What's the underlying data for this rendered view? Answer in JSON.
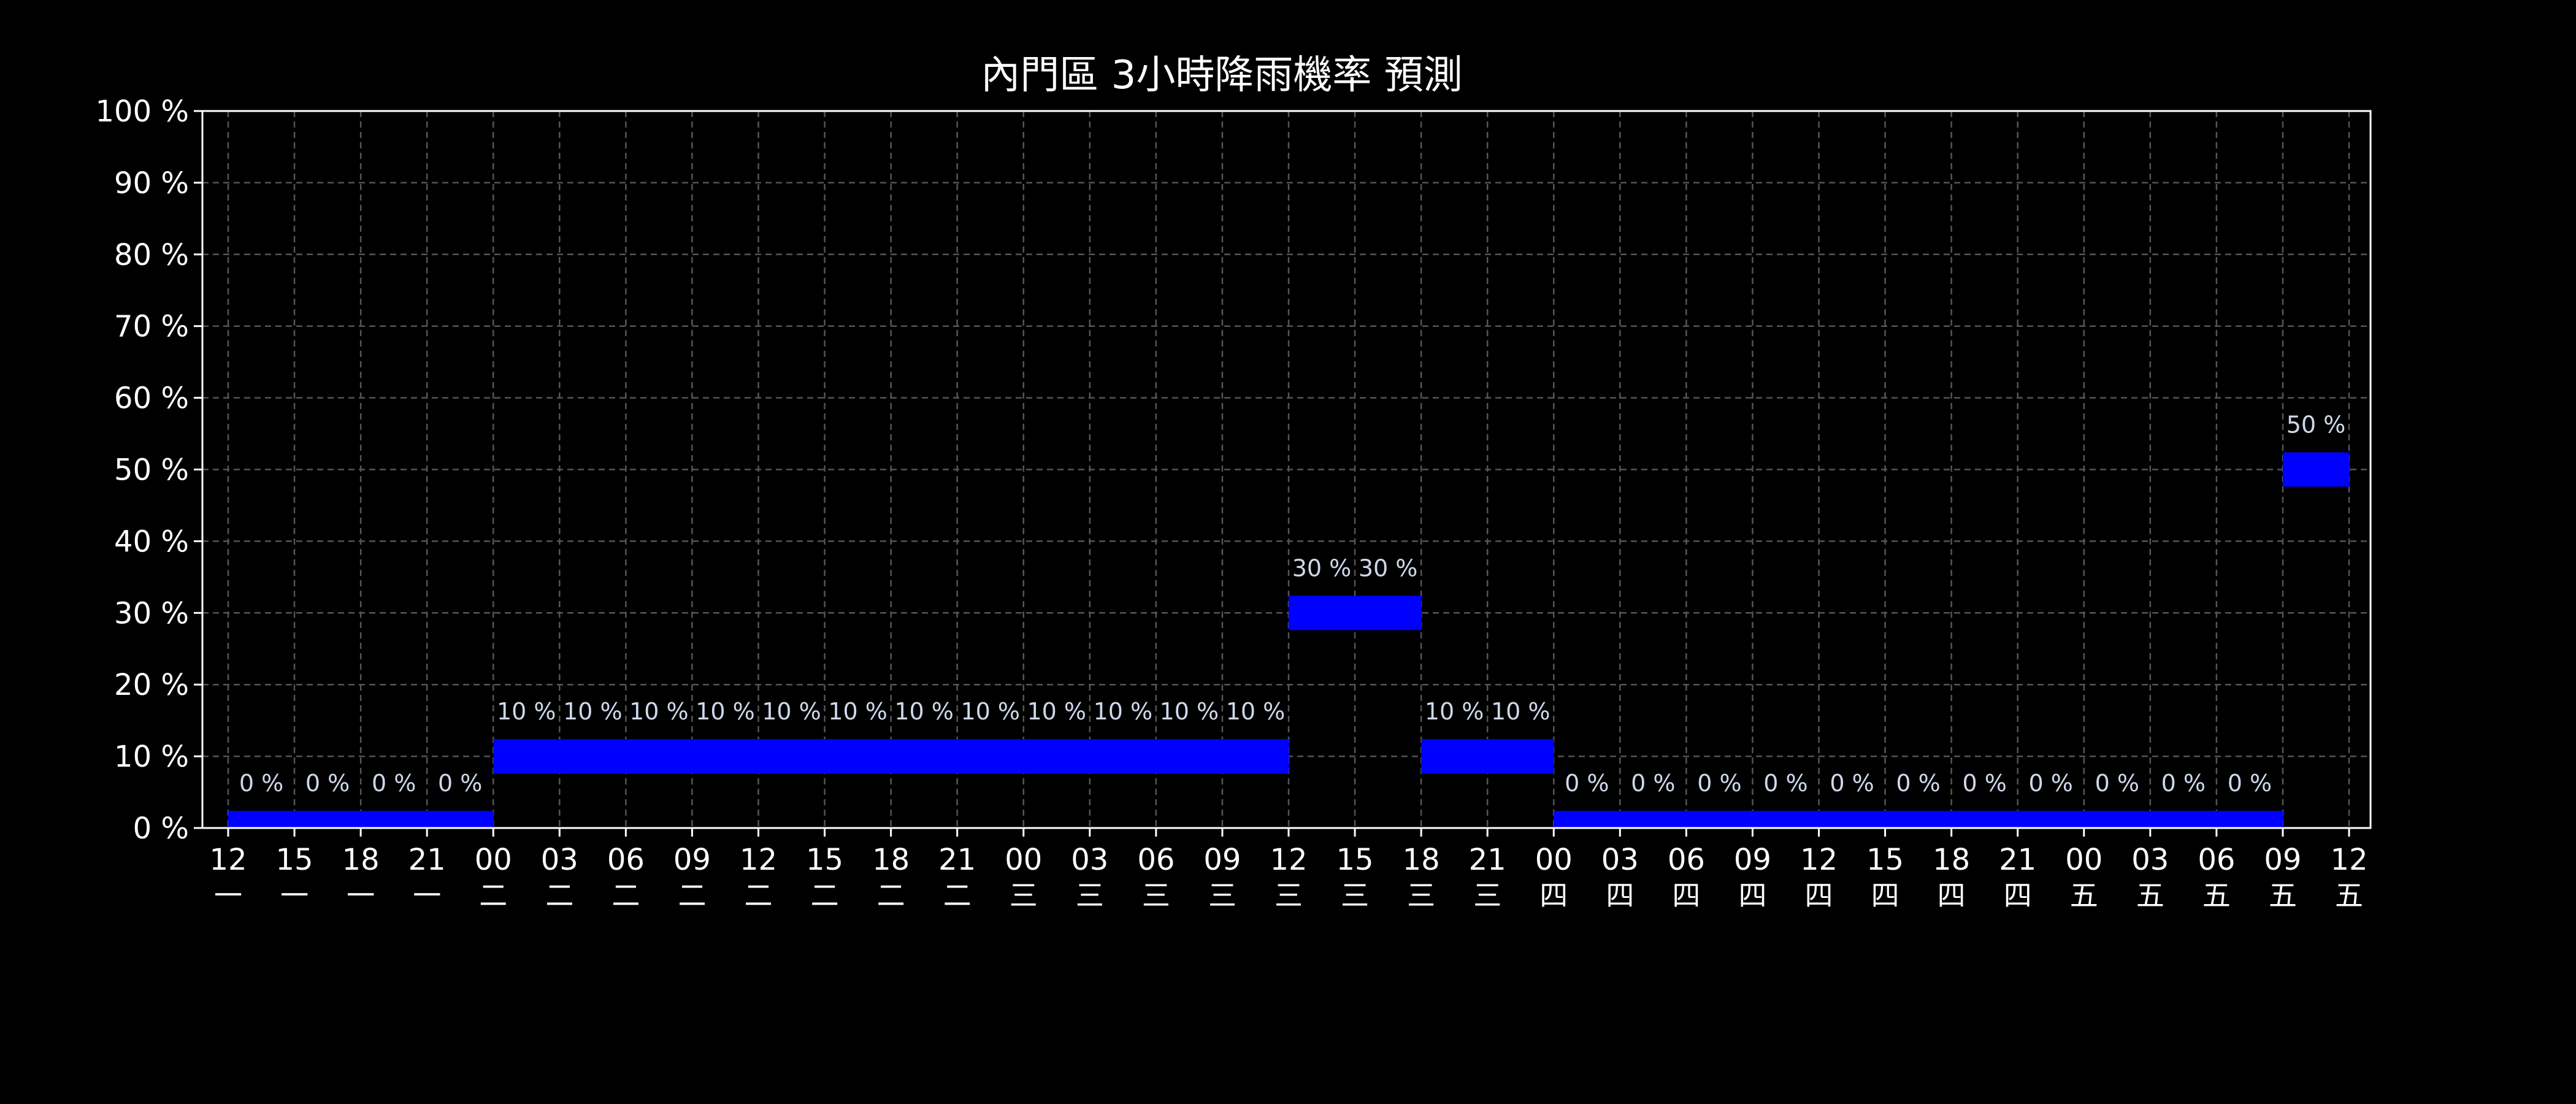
{
  "chart_data": {
    "type": "bar",
    "title": "內門區 3小時降雨機率 預測",
    "xlabel": "",
    "ylabel": "",
    "ylim": [
      0,
      100
    ],
    "y_ticks": [
      "0 %",
      "10 %",
      "20 %",
      "30 %",
      "40 %",
      "50 %",
      "60 %",
      "70 %",
      "80 %",
      "90 %",
      "100 %"
    ],
    "x_ticks": [
      {
        "hour": "12",
        "day": "一"
      },
      {
        "hour": "15",
        "day": "一"
      },
      {
        "hour": "18",
        "day": "一"
      },
      {
        "hour": "21",
        "day": "一"
      },
      {
        "hour": "00",
        "day": "二"
      },
      {
        "hour": "03",
        "day": "二"
      },
      {
        "hour": "06",
        "day": "二"
      },
      {
        "hour": "09",
        "day": "二"
      },
      {
        "hour": "12",
        "day": "二"
      },
      {
        "hour": "15",
        "day": "二"
      },
      {
        "hour": "18",
        "day": "二"
      },
      {
        "hour": "21",
        "day": "二"
      },
      {
        "hour": "00",
        "day": "三"
      },
      {
        "hour": "03",
        "day": "三"
      },
      {
        "hour": "06",
        "day": "三"
      },
      {
        "hour": "09",
        "day": "三"
      },
      {
        "hour": "12",
        "day": "三"
      },
      {
        "hour": "15",
        "day": "三"
      },
      {
        "hour": "18",
        "day": "三"
      },
      {
        "hour": "21",
        "day": "三"
      },
      {
        "hour": "00",
        "day": "四"
      },
      {
        "hour": "03",
        "day": "四"
      },
      {
        "hour": "06",
        "day": "四"
      },
      {
        "hour": "09",
        "day": "四"
      },
      {
        "hour": "12",
        "day": "四"
      },
      {
        "hour": "15",
        "day": "四"
      },
      {
        "hour": "18",
        "day": "四"
      },
      {
        "hour": "21",
        "day": "四"
      },
      {
        "hour": "00",
        "day": "五"
      },
      {
        "hour": "03",
        "day": "五"
      },
      {
        "hour": "06",
        "day": "五"
      },
      {
        "hour": "09",
        "day": "五"
      },
      {
        "hour": "12",
        "day": "五"
      }
    ],
    "values": [
      0,
      0,
      0,
      0,
      10,
      10,
      10,
      10,
      10,
      10,
      10,
      10,
      10,
      10,
      10,
      10,
      30,
      30,
      10,
      10,
      0,
      0,
      0,
      0,
      0,
      0,
      0,
      0,
      0,
      0,
      0,
      50
    ],
    "value_labels": [
      "0 %",
      "0 %",
      "0 %",
      "0 %",
      "10 %",
      "10 %",
      "10 %",
      "10 %",
      "10 %",
      "10 %",
      "10 %",
      "10 %",
      "10 %",
      "10 %",
      "10 %",
      "10 %",
      "30 %",
      "30 %",
      "10 %",
      "10 %",
      "0 %",
      "0 %",
      "0 %",
      "0 %",
      "0 %",
      "0 %",
      "0 %",
      "0 %",
      "0 %",
      "0 %",
      "0 %",
      "50 %"
    ],
    "grid": true,
    "colors": {
      "background": "#000000",
      "bar": "#0000ff",
      "grid": "#555555",
      "axis": "#ffffff",
      "text": "#ffffff",
      "value_label": "#cfd8ea"
    }
  }
}
